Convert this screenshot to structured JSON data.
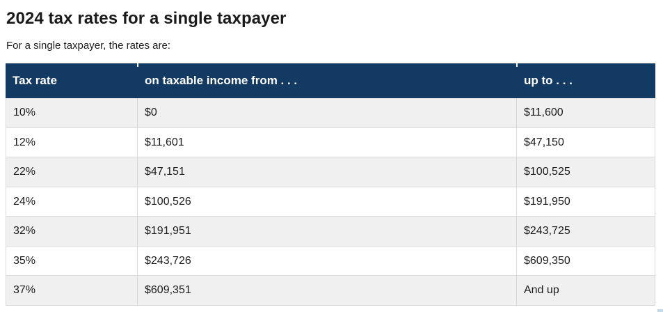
{
  "page": {
    "title": "2024 tax rates for a single taxpayer",
    "subtitle": "For a single taxpayer, the rates are:"
  },
  "colors": {
    "header_background": "#123a63",
    "header_text": "#ffffff",
    "row_alternate_background": "#f0f0f0",
    "row_background": "#ffffff",
    "border": "#d9d9d9",
    "body_text": "#1b1b1b"
  },
  "chart_data": {
    "type": "table",
    "title": "2024 tax rates for a single taxpayer",
    "columns": [
      "Tax rate",
      "on taxable income from . . .",
      "up to . . ."
    ],
    "rows": [
      [
        "10%",
        "$0",
        "$11,600"
      ],
      [
        "12%",
        "$11,601",
        "$47,150"
      ],
      [
        "22%",
        "$47,151",
        "$100,525"
      ],
      [
        "24%",
        "$100,526",
        "$191,950"
      ],
      [
        "32%",
        "$191,951",
        "$243,725"
      ],
      [
        "35%",
        "$243,726",
        "$609,350"
      ],
      [
        "37%",
        "$609,351",
        "And up"
      ]
    ]
  }
}
